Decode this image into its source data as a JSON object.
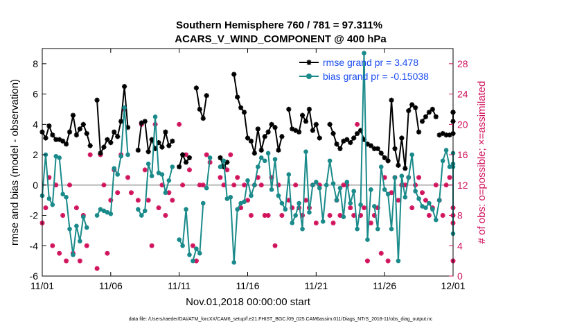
{
  "chart_data": {
    "type": "line",
    "title_line1": "Southern Hemisphere 760 / 781 = 97.311%",
    "title_line2": "ACARS_V_WIND_COMPONENT @ 400 hPa",
    "ylabel": "rmse and bias (model - observation)",
    "ylabel_right": "# of obs: o=possible; ×=assimilated",
    "xlabel": "Nov.01,2018 00:00:00 start",
    "footer": "data file: /Users/raeder/DAI/ATM_forcXX/CAM6_setup/f.e21.FHIST_BGC.f09_025.CAM6assim.011/Diags_NTrS_2018-11/obs_diag_output.nc",
    "xlim": [
      0,
      30
    ],
    "ylim": [
      -6,
      9
    ],
    "ylim_right": [
      0,
      30
    ],
    "x_ticks": [
      0,
      5,
      10,
      15,
      20,
      25,
      30
    ],
    "x_tick_labels": [
      "11/01",
      "11/06",
      "11/11",
      "11/16",
      "11/21",
      "11/26",
      "12/01"
    ],
    "y_ticks": [
      -6,
      -4,
      -2,
      0,
      2,
      4,
      6,
      8
    ],
    "y_tick_labels": [
      "-6",
      "-4",
      "-2",
      "0",
      "2",
      "4",
      "6",
      "8"
    ],
    "y_right_ticks": [
      0,
      4,
      8,
      12,
      16,
      20,
      24,
      28
    ],
    "y_right_tick_labels": [
      "0",
      "4",
      "8",
      "12",
      "16",
      "20",
      "24",
      "28"
    ],
    "legend_location": "top-right",
    "zero_line": 0,
    "series": [
      {
        "name": "rmse grand pr = 3.478",
        "color": "#000000",
        "marker": "asterisk",
        "segments": [
          {
            "x": [
              0,
              0.25,
              0.5,
              0.75,
              1.0,
              1.25,
              1.5,
              1.75,
              2.0,
              2.25,
              2.5,
              2.75,
              3.0,
              3.25,
              3.5
            ],
            "y": [
              3.5,
              3.1,
              3.9,
              3.3,
              3.0,
              3.0,
              2.9,
              2.7,
              3.5,
              4.6,
              3.3,
              3.7,
              4.0,
              3.4,
              2.6
            ]
          },
          {
            "x": [
              4.0,
              4.25,
              4.5,
              4.75,
              5.0,
              5.25,
              5.5,
              5.75,
              6.0,
              6.25
            ],
            "y": [
              5.6,
              2.1,
              2.5,
              3.0,
              2.8,
              3.5,
              3.2,
              4.2,
              6.5,
              3.8
            ]
          },
          {
            "x": [
              7.0,
              7.25,
              7.5,
              7.75,
              8.0,
              8.25,
              8.5,
              8.75,
              9.0,
              9.25,
              9.5
            ],
            "y": [
              2.3,
              4.1,
              4.2,
              2.2,
              3.0,
              2.4,
              2.8,
              2.5,
              3.5,
              2.6,
              2.9
            ]
          },
          {
            "x": [
              10.0,
              10.25,
              10.5,
              10.75
            ],
            "y": [
              1.2,
              2.0,
              1.5,
              1.8
            ]
          },
          {
            "x": [
              11.25,
              11.5,
              11.75,
              12.0
            ],
            "y": [
              6.4,
              5.0,
              4.4,
              5.9
            ]
          },
          {
            "x": [
              13.0,
              13.25,
              13.5
            ],
            "y": [
              1.8,
              1.2,
              1.5
            ]
          },
          {
            "x": [
              14.0,
              14.25,
              14.5,
              14.75,
              15.0,
              15.25,
              15.5,
              15.75,
              16.0,
              16.25,
              16.5,
              16.75,
              17.0,
              17.25,
              17.5
            ],
            "y": [
              7.3,
              5.8,
              5.1,
              4.8,
              3.1,
              2.9,
              2.1,
              3.7,
              2.3,
              3.2,
              3.5,
              4.0,
              3.8,
              2.3,
              3.2
            ]
          },
          {
            "x": [
              18.0,
              18.25,
              18.5,
              18.75,
              19.0,
              19.25,
              19.5,
              19.75,
              20.0,
              20.25
            ],
            "y": [
              5.0,
              3.7,
              3.6,
              3.5,
              4.6,
              4.2,
              5.0,
              3.6,
              4.0,
              3.1
            ]
          },
          {
            "x": [
              21.0,
              21.25,
              21.5,
              21.75,
              22.0,
              22.25,
              22.5,
              22.75,
              23.0,
              23.25,
              23.5,
              23.75,
              24.0
            ],
            "y": [
              4.0,
              3.4,
              2.7,
              2.4,
              2.9,
              3.0,
              2.8,
              3.1,
              3.4,
              3.6,
              3.0,
              2.7,
              2.6
            ]
          },
          {
            "x": [
              24.25,
              24.5,
              24.75,
              25.0,
              25.25,
              25.5,
              25.75,
              26.0,
              26.25,
              26.5,
              26.75,
              27.0,
              27.25,
              27.5
            ],
            "y": [
              2.4,
              2.4,
              2.1,
              1.8,
              1.6,
              5.6,
              2.4,
              1.3,
              3.1,
              1.1,
              4.9,
              5.3,
              5.1,
              3.5
            ]
          },
          {
            "x": [
              27.75,
              28.0,
              28.25,
              28.5,
              28.75
            ],
            "y": [
              4.2,
              4.5,
              4.8,
              5.0,
              4.5
            ]
          },
          {
            "x": [
              29.0,
              29.25,
              29.5,
              29.75,
              30.0,
              30.25,
              30.5,
              30.75
            ],
            "y": [
              3.3,
              3.4,
              3.3,
              3.3,
              3.4,
              4.2,
              4.8,
              4.8
            ]
          }
        ]
      },
      {
        "name": "bias grand pr = -0.15038",
        "color": "#1a8a8a",
        "marker": "circle",
        "segments": [
          {
            "x": [
              0,
              0.25,
              0.5,
              0.75,
              1.0,
              1.25,
              1.5,
              1.75,
              2.0,
              2.25,
              2.5,
              2.75,
              3.0,
              3.25
            ],
            "y": [
              -0.7,
              2.0,
              -0.9,
              -1.3,
              1.9,
              1.8,
              -0.6,
              -0.8,
              -2.9,
              -4.6,
              -2.7,
              -3.7,
              -2.1,
              -2.8
            ]
          },
          {
            "x": [
              4.0,
              4.25,
              4.5,
              4.75,
              5.0,
              5.25,
              5.5,
              5.75,
              6.0,
              6.25
            ],
            "y": [
              -2.0,
              -1.6,
              -1.7,
              -1.8,
              -1.9,
              1.1,
              0.7,
              1.9,
              5.1,
              2.0
            ]
          },
          {
            "x": [
              7.0,
              7.25,
              7.5,
              7.75,
              8.0,
              8.25,
              8.5,
              8.75,
              9.0,
              9.25,
              9.5
            ],
            "y": [
              -1.6,
              -2.0,
              -1.7,
              1.4,
              0.6,
              4.5,
              0.8,
              0.7,
              -0.5,
              0.3,
              1.2
            ]
          },
          {
            "x": [
              10.0,
              10.25,
              10.5,
              10.75
            ],
            "y": [
              -3.6,
              -4.0,
              -1.6,
              -4.6
            ]
          },
          {
            "x": [
              11.0,
              11.25,
              11.5,
              11.75
            ],
            "y": [
              -5.0,
              -4.2,
              -4.5,
              -1.2
            ]
          },
          {
            "x": [
              12.0,
              12.25
            ],
            "y": [
              -0.2,
              1.8
            ]
          },
          {
            "x": [
              13.0,
              13.25,
              13.5,
              13.75,
              14.0,
              14.25,
              14.5,
              14.75,
              15.0,
              15.25,
              15.5,
              15.75,
              16.0,
              16.25
            ],
            "y": [
              1.2,
              1.6,
              -0.9,
              -0.8,
              -5.1,
              -1.6,
              -1.2,
              -1.1,
              0.3,
              -0.7,
              0.0,
              1.2,
              1.8,
              1.6
            ]
          },
          {
            "x": [
              16.5,
              16.75,
              17.0,
              17.25,
              17.5,
              17.75,
              18.0,
              18.25,
              18.5,
              18.75,
              19.0,
              19.25,
              19.5,
              19.75
            ],
            "y": [
              2.1,
              -0.3,
              1.7,
              -0.7,
              -1.2,
              -1.6,
              0.7,
              -2.5,
              -2.0,
              -1.2,
              -2.9,
              2.2,
              -1.8,
              0.0
            ]
          },
          {
            "x": [
              20.0,
              20.25,
              20.5,
              20.75,
              21.0,
              21.25,
              21.5,
              21.75,
              22.0,
              22.25,
              22.5,
              22.75,
              23.0,
              23.25,
              23.5,
              23.75,
              24.0
            ],
            "y": [
              0.2,
              -0.2,
              -2.4,
              0.0,
              1.6,
              0.1,
              -1.0,
              -0.2,
              -2.1,
              0.2,
              -1.2,
              -0.4,
              -2.9,
              -1.3,
              8.7,
              -3.6,
              -0.3
            ]
          },
          {
            "x": [
              24.25,
              24.5,
              24.75,
              25.0,
              25.25,
              25.5,
              25.75,
              26.0,
              26.25,
              26.5,
              26.75,
              27.0,
              27.25,
              27.5,
              27.75,
              28.0,
              28.25,
              28.5,
              28.75,
              29.0,
              29.25,
              29.5,
              29.75,
              30.0,
              30.25,
              30.5,
              30.75
            ],
            "y": [
              -1.4,
              -2.9,
              1.2,
              -0.3,
              -0.6,
              -2.9,
              0.5,
              -5.0,
              0.6,
              -0.8,
              0.5,
              2.0,
              -0.4,
              -0.9,
              -1.4,
              -1.5,
              -1.2,
              -1.6,
              -2.3,
              -1.0,
              1.6,
              2.3,
              1.2,
              1.4,
              2.1,
              1.2,
              -3.2
            ]
          }
        ]
      }
    ],
    "obs_counts": {
      "color": "#d0105a",
      "x": [
        0,
        0.25,
        0.5,
        0.75,
        1.0,
        1.25,
        1.5,
        1.75,
        2.0,
        2.25,
        2.5,
        2.75,
        3.0,
        3.25,
        3.5,
        4.0,
        4.25,
        4.5,
        4.75,
        5.0,
        5.25,
        5.5,
        5.75,
        6.0,
        6.25,
        6.5,
        7.0,
        7.25,
        7.5,
        7.75,
        8.0,
        8.25,
        8.5,
        8.75,
        9.0,
        9.25,
        9.5,
        10.0,
        10.25,
        10.5,
        10.75,
        11.0,
        11.25,
        11.5,
        11.75,
        12.0,
        12.25,
        13.0,
        13.25,
        13.5,
        13.75,
        14.0,
        14.25,
        14.5,
        14.75,
        15.0,
        15.25,
        15.5,
        15.75,
        16.0,
        16.25,
        16.5,
        16.75,
        17.0,
        17.25,
        17.5,
        18.0,
        18.25,
        18.5,
        18.75,
        19.0,
        19.25,
        19.5,
        19.75,
        20.0,
        20.25,
        21.0,
        21.25,
        21.5,
        21.75,
        22.0,
        22.25,
        22.5,
        22.75,
        23.0,
        23.25,
        23.5,
        23.75,
        24.0,
        24.25,
        24.5,
        24.75,
        25.0,
        25.25,
        25.5,
        25.75,
        26.0,
        26.25,
        26.5,
        26.75,
        27.0,
        27.25,
        27.5,
        27.75,
        28.0,
        28.25,
        28.5,
        28.75,
        29.0,
        29.25,
        29.5,
        29.75,
        30.0,
        30.25,
        30.5,
        30.75
      ],
      "y": [
        7,
        9,
        13,
        4,
        12,
        3,
        8,
        2,
        12,
        3,
        9,
        2,
        8,
        4,
        16,
        1,
        16,
        12,
        3,
        10,
        14,
        11,
        16,
        22,
        13,
        11,
        10,
        20,
        14,
        10,
        4,
        20,
        9,
        12,
        8,
        11,
        10,
        20,
        12,
        16,
        14,
        4,
        2,
        12,
        12,
        16,
        15,
        13,
        12,
        14,
        16,
        12,
        13,
        9,
        12,
        10,
        8,
        12,
        13,
        12,
        8,
        8,
        13,
        4,
        12,
        8,
        10,
        9,
        12,
        9,
        8,
        10,
        9,
        12,
        7,
        12,
        8,
        7,
        10,
        8,
        12,
        12,
        9,
        8,
        20,
        8,
        9,
        2,
        7,
        8,
        9,
        3,
        13,
        2,
        11,
        13,
        10,
        12,
        12,
        13,
        9,
        12,
        13,
        11,
        10,
        8,
        9,
        12,
        10,
        8,
        12,
        13,
        2,
        8,
        7,
        9
      ]
    }
  }
}
